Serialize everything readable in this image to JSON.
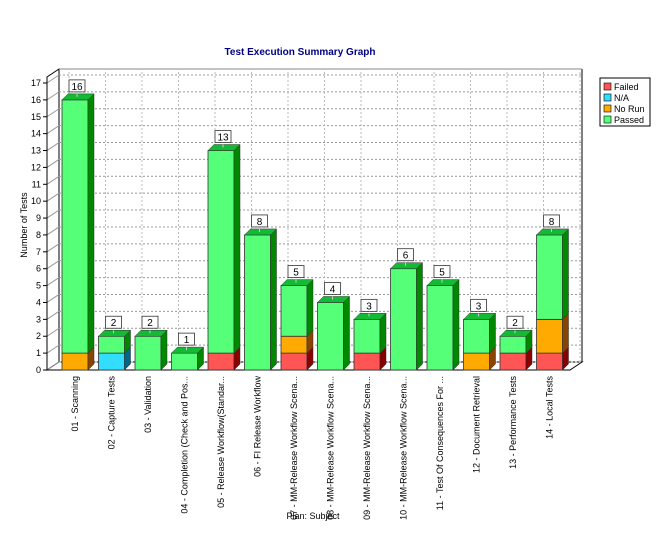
{
  "chart_data": {
    "type": "bar",
    "stacked": true,
    "title": "Test Execution Summary Graph",
    "xlabel": "Plan: Subject",
    "ylabel": "Number of Tests",
    "ylim": [
      0,
      17
    ],
    "yticks": [
      "0",
      "1",
      "2",
      "3",
      "4",
      "5",
      "6",
      "7",
      "8",
      "9",
      "10",
      "11",
      "12",
      "13",
      "14",
      "15",
      "16",
      "17"
    ],
    "grid": true,
    "legend_position": "top-right",
    "categories": [
      "01 - Scanning",
      "02 - Capture Tests",
      "03 - Validation",
      "04 - Completion (Check and Pos...",
      "05 - Release Workflow(Standar...",
      "06 - FI Release Workflow",
      "07 - MM-Release Workflow Scena...",
      "08 - MM-Release Workflow Scena...",
      "09 - MM-Release Workflow Scena...",
      "10 - MM-Release Workflow Scena...",
      "11 - Test Of Consequences For ...",
      "12 - Document Retrieval",
      "13 - Performance Tests",
      "14 - Local Tests"
    ],
    "series": [
      {
        "name": "Failed",
        "color": "#ff5555",
        "side": "#880000",
        "values": [
          0,
          0,
          0,
          0,
          1,
          0,
          1,
          0,
          1,
          0,
          0,
          0,
          1,
          1
        ]
      },
      {
        "name": "N/A",
        "color": "#33ddff",
        "side": "#006688",
        "values": [
          0,
          1,
          0,
          0,
          0,
          0,
          0,
          0,
          0,
          0,
          0,
          0,
          0,
          0
        ]
      },
      {
        "name": "No Run",
        "color": "#ffaa00",
        "side": "#884400",
        "values": [
          1,
          0,
          0,
          0,
          0,
          0,
          1,
          0,
          0,
          0,
          0,
          1,
          0,
          2
        ]
      },
      {
        "name": "Passed",
        "color": "#55ff77",
        "side": "#008800",
        "values": [
          15,
          1,
          2,
          1,
          12,
          8,
          3,
          4,
          2,
          6,
          5,
          2,
          1,
          5
        ]
      }
    ],
    "totals": [
      "16",
      "2",
      "2",
      "1",
      "13",
      "8",
      "5",
      "4",
      "3",
      "6",
      "5",
      "3",
      "2",
      "8"
    ]
  }
}
